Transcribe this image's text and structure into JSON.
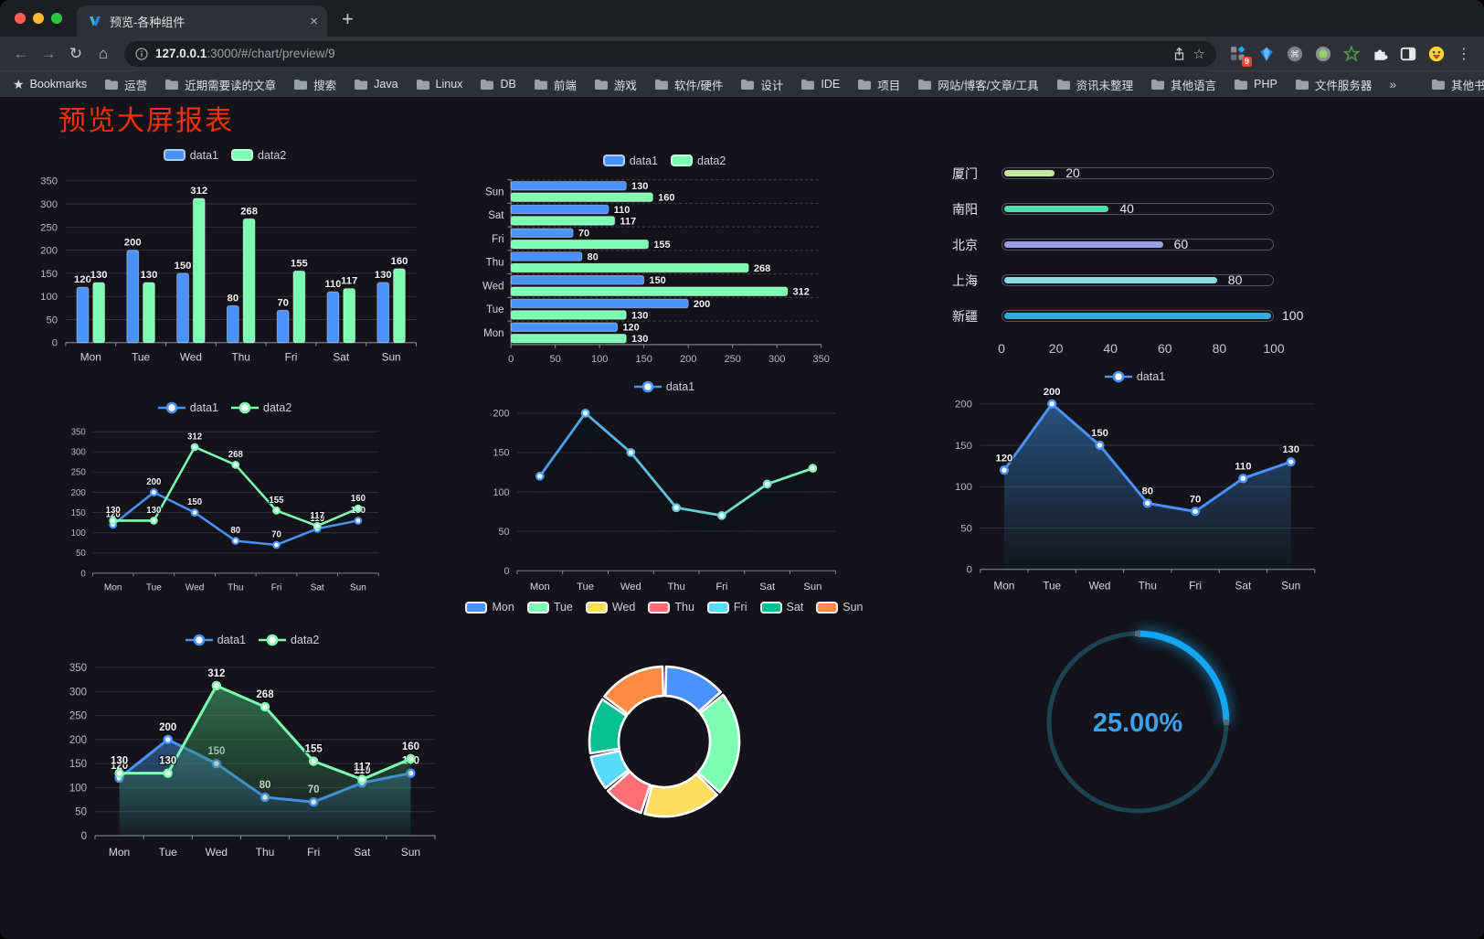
{
  "browser": {
    "traffic_lights": [
      {
        "name": "close",
        "color": "#ff5f57"
      },
      {
        "name": "minimize",
        "color": "#febc2e"
      },
      {
        "name": "zoom",
        "color": "#28c840"
      }
    ],
    "tab": {
      "title": "预览-各种组件",
      "close_glyph": "×"
    },
    "new_tab_glyph": "+",
    "nav": {
      "back": "←",
      "forward": "→",
      "reload": "↻",
      "home": "⌂"
    },
    "address": {
      "url_host": "127.0.0.1",
      "url_rest": ":3000/#/chart/preview/9",
      "star_glyph": "☆"
    },
    "extensions": {
      "badge": "9",
      "cmd_glyph": "⌘",
      "items": [
        "grid-extension",
        "gem-extension",
        "cmd-circle-extension",
        "record-circle-extension",
        "green-star-extension",
        "puzzle-extension",
        "sidebar-extension",
        "emoji-extension"
      ]
    },
    "menu_glyph": "⋮",
    "bookmarks": {
      "star_glyph": "★",
      "label": "Bookmarks",
      "items": [
        "运营",
        "近期需要读的文章",
        "搜索",
        "Java",
        "Linux",
        "DB",
        "前端",
        "游戏",
        "软件/硬件",
        "设计",
        "IDE",
        "项目",
        "网站/博客/文章/工具",
        "资讯未整理",
        "其他语言",
        "PHP",
        "文件服务器"
      ],
      "overflow_glyph": "»",
      "other_label": "其他书签"
    }
  },
  "page": {
    "title": "预览大屏报表",
    "title_color": "#f3300c",
    "background": "#131319"
  },
  "chart_data": [
    {
      "type": "bar",
      "legend_icon": "rect",
      "legend": [
        {
          "name": "data1",
          "color": "#4992ff"
        },
        {
          "name": "data2",
          "color": "#7cffb2"
        }
      ],
      "categories": [
        "Mon",
        "Tue",
        "Wed",
        "Thu",
        "Fri",
        "Sat",
        "Sun"
      ],
      "series": [
        {
          "name": "data1",
          "color": "#4992ff",
          "values": [
            120,
            200,
            150,
            80,
            70,
            110,
            130
          ]
        },
        {
          "name": "data2",
          "color": "#7cffb2",
          "values": [
            130,
            130,
            312,
            268,
            155,
            117,
            160
          ]
        }
      ],
      "yticks": [
        0,
        50,
        100,
        150,
        200,
        250,
        300,
        350
      ],
      "ylim": [
        0,
        350
      ],
      "show_labels": true
    },
    {
      "type": "hbar",
      "legend_icon": "rect",
      "legend": [
        {
          "name": "data1",
          "color": "#4992ff"
        },
        {
          "name": "data2",
          "color": "#7cffb2"
        }
      ],
      "categories_top_to_bottom": [
        "Sun",
        "Sat",
        "Fri",
        "Thu",
        "Wed",
        "Tue",
        "Mon"
      ],
      "series": [
        {
          "name": "data1",
          "color": "#4992ff",
          "values_top_to_bottom": [
            130,
            110,
            70,
            80,
            150,
            200,
            120
          ]
        },
        {
          "name": "data2",
          "color": "#7cffb2",
          "values_top_to_bottom": [
            160,
            117,
            155,
            268,
            312,
            130,
            130
          ]
        }
      ],
      "xticks": [
        0,
        50,
        100,
        150,
        200,
        250,
        300,
        350
      ],
      "xlim": [
        0,
        350
      ],
      "show_labels": true
    },
    {
      "type": "capsule",
      "max": 100,
      "xticks": [
        0,
        20,
        40,
        60,
        80,
        100
      ],
      "rows": [
        {
          "label": "厦门",
          "value": 20,
          "color": "#c9e79c"
        },
        {
          "label": "南阳",
          "value": 40,
          "color": "#4fe0a6"
        },
        {
          "label": "北京",
          "value": 60,
          "color": "#9aa0e6"
        },
        {
          "label": "上海",
          "value": 80,
          "color": "#87dde1"
        },
        {
          "label": "新疆",
          "value": 100,
          "color": "#39a8de"
        }
      ]
    },
    {
      "type": "line",
      "legend_icon": "line",
      "legend": [
        {
          "name": "data1",
          "color": "#4992ff"
        },
        {
          "name": "data2",
          "color": "#7cffb2"
        }
      ],
      "categories": [
        "Mon",
        "Tue",
        "Wed",
        "Thu",
        "Fri",
        "Sat",
        "Sun"
      ],
      "series": [
        {
          "name": "data1",
          "color": "#4992ff",
          "values": [
            120,
            200,
            150,
            80,
            70,
            110,
            130
          ]
        },
        {
          "name": "data2",
          "color": "#7cffb2",
          "values": [
            130,
            130,
            312,
            268,
            155,
            117,
            160
          ]
        }
      ],
      "yticks": [
        0,
        50,
        100,
        150,
        200,
        250,
        300,
        350
      ],
      "ylim": [
        0,
        350
      ],
      "show_labels": true
    },
    {
      "type": "line",
      "legend_icon": "line",
      "legend": [
        {
          "name": "data1",
          "color": "#4992ff"
        }
      ],
      "categories": [
        "Mon",
        "Tue",
        "Wed",
        "Thu",
        "Fri",
        "Sat",
        "Sun"
      ],
      "series": [
        {
          "name": "data1",
          "color": "#4992ff",
          "gradient": [
            "#4992ff",
            "#7cffb2"
          ],
          "values": [
            120,
            200,
            150,
            80,
            70,
            110,
            130
          ]
        }
      ],
      "yticks": [
        0,
        50,
        100,
        150,
        200
      ],
      "ylim": [
        0,
        200
      ],
      "show_labels": false,
      "shadow": true
    },
    {
      "type": "line",
      "legend_icon": "line",
      "legend": [
        {
          "name": "data1",
          "color": "#4992ff"
        }
      ],
      "categories": [
        "Mon",
        "Tue",
        "Wed",
        "Thu",
        "Fri",
        "Sat",
        "Sun"
      ],
      "series": [
        {
          "name": "data1",
          "color": "#4992ff",
          "values": [
            120,
            200,
            150,
            80,
            70,
            110,
            130
          ],
          "area": [
            "rgba(45,98,152,0.80)",
            "rgba(45,98,152,0.04)"
          ]
        }
      ],
      "yticks": [
        0,
        50,
        100,
        150,
        200
      ],
      "ylim": [
        0,
        200
      ],
      "show_labels": true
    },
    {
      "type": "line",
      "legend_icon": "line",
      "legend": [
        {
          "name": "data1",
          "color": "#4992ff"
        },
        {
          "name": "data2",
          "color": "#7cffb2"
        }
      ],
      "categories": [
        "Mon",
        "Tue",
        "Wed",
        "Thu",
        "Fri",
        "Sat",
        "Sun"
      ],
      "series": [
        {
          "name": "data1",
          "color": "#4992ff",
          "values": [
            120,
            200,
            150,
            80,
            70,
            110,
            130
          ],
          "area": [
            "rgba(52,104,164,0.75)",
            "rgba(52,104,164,0.05)"
          ]
        },
        {
          "name": "data2",
          "color": "#7cffb2",
          "values": [
            130,
            130,
            312,
            268,
            155,
            117,
            160
          ],
          "area": [
            "rgba(56,138,92,0.75)",
            "rgba(56,138,92,0.05)"
          ]
        }
      ],
      "yticks": [
        0,
        50,
        100,
        150,
        200,
        250,
        300,
        350
      ],
      "ylim": [
        0,
        350
      ],
      "show_labels": true
    },
    {
      "type": "donut",
      "legend_icon": "rect-white",
      "legend": [
        {
          "name": "Mon",
          "color": "#4992ff"
        },
        {
          "name": "Tue",
          "color": "#7cffb2"
        },
        {
          "name": "Wed",
          "color": "#fddd60"
        },
        {
          "name": "Thu",
          "color": "#ff6e76"
        },
        {
          "name": "Fri",
          "color": "#58d9f9"
        },
        {
          "name": "Sat",
          "color": "#05c091"
        },
        {
          "name": "Sun",
          "color": "#ff8a45"
        }
      ],
      "slices": [
        {
          "name": "Mon",
          "value": 120,
          "color": "#4992ff"
        },
        {
          "name": "Tue",
          "value": 200,
          "color": "#7cffb2"
        },
        {
          "name": "Wed",
          "value": 150,
          "color": "#fddd60"
        },
        {
          "name": "Thu",
          "value": 80,
          "color": "#ff6e76"
        },
        {
          "name": "Fri",
          "value": 70,
          "color": "#58d9f9"
        },
        {
          "name": "Sat",
          "value": 110,
          "color": "#05c091"
        },
        {
          "name": "Sun",
          "value": 130,
          "color": "#ff8a45"
        }
      ]
    },
    {
      "type": "gauge",
      "value_text": "25.00%",
      "percent": 25,
      "color": "#14a5f2",
      "track_color": "#1c4350",
      "text_color": "#3ea2e8"
    }
  ]
}
